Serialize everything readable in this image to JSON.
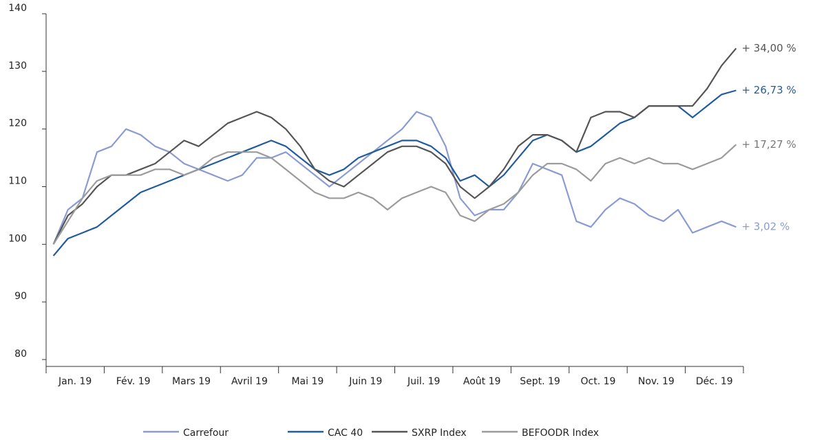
{
  "chart_data": {
    "type": "line",
    "categories": [
      "Jan. 19",
      null,
      null,
      null,
      "Fév. 19",
      null,
      null,
      null,
      "Mars 19",
      null,
      null,
      null,
      "Avril 19",
      null,
      null,
      null,
      "Mai 19",
      null,
      null,
      null,
      "Juin 19",
      null,
      null,
      null,
      "Juil. 19",
      null,
      null,
      null,
      "Août 19",
      null,
      null,
      null,
      "Sept. 19",
      null,
      null,
      null,
      "Oct. 19",
      null,
      null,
      null,
      "Nov. 19",
      null,
      null,
      null,
      "Déc. 19",
      null,
      null,
      null
    ],
    "series": [
      {
        "name": "Carrefour",
        "color": "#8a9bd2",
        "end_label": "+ 3,02 %",
        "values": [
          100,
          106,
          108,
          116,
          117,
          120,
          119,
          117,
          116,
          114,
          113,
          112,
          111,
          112,
          115,
          115,
          116,
          114,
          112,
          110,
          112,
          114,
          116,
          118,
          120,
          123,
          122,
          117,
          108,
          105,
          106,
          106,
          109,
          114,
          113,
          112,
          104,
          103,
          106,
          108,
          107,
          105,
          104,
          106,
          102,
          103,
          104,
          103
        ]
      },
      {
        "name": "CAC 40",
        "color": "#1f5b9e",
        "end_label": "+ 26,73 %",
        "values": [
          98,
          101,
          102,
          103,
          105,
          107,
          109,
          110,
          111,
          112,
          113,
          114,
          115,
          116,
          117,
          118,
          117,
          115,
          113,
          112,
          113,
          115,
          116,
          117,
          118,
          118,
          117,
          115,
          111,
          112,
          110,
          112,
          115,
          118,
          119,
          118,
          116,
          117,
          119,
          121,
          122,
          124,
          124,
          124,
          122,
          124,
          126,
          126.7
        ]
      },
      {
        "name": "SXRP Index",
        "color": "#555555",
        "end_label": "+ 34,00 %",
        "values": [
          100,
          105,
          107,
          110,
          112,
          112,
          113,
          114,
          116,
          118,
          117,
          119,
          121,
          122,
          123,
          122,
          120,
          117,
          113,
          111,
          110,
          112,
          114,
          116,
          117,
          117,
          116,
          114,
          110,
          108,
          110,
          113,
          117,
          119,
          119,
          118,
          116,
          122,
          123,
          123,
          122,
          124,
          124,
          124,
          124,
          127,
          131,
          134
        ]
      },
      {
        "name": "BEFOODR Index",
        "color": "#9b9b9b",
        "end_label": "+ 17,27 %",
        "values": [
          100,
          104,
          108,
          111,
          112,
          112,
          112,
          113,
          113,
          112,
          113,
          115,
          116,
          116,
          116,
          115,
          113,
          111,
          109,
          108,
          108,
          109,
          108,
          106,
          108,
          109,
          110,
          109,
          105,
          104,
          106,
          107,
          109,
          112,
          114,
          114,
          113,
          111,
          114,
          115,
          114,
          115,
          114,
          114,
          113,
          114,
          115,
          117.3
        ]
      }
    ],
    "ylim": [
      80,
      140
    ],
    "yticks": [
      80,
      90,
      100,
      110,
      120,
      130,
      140
    ],
    "grid": false
  }
}
